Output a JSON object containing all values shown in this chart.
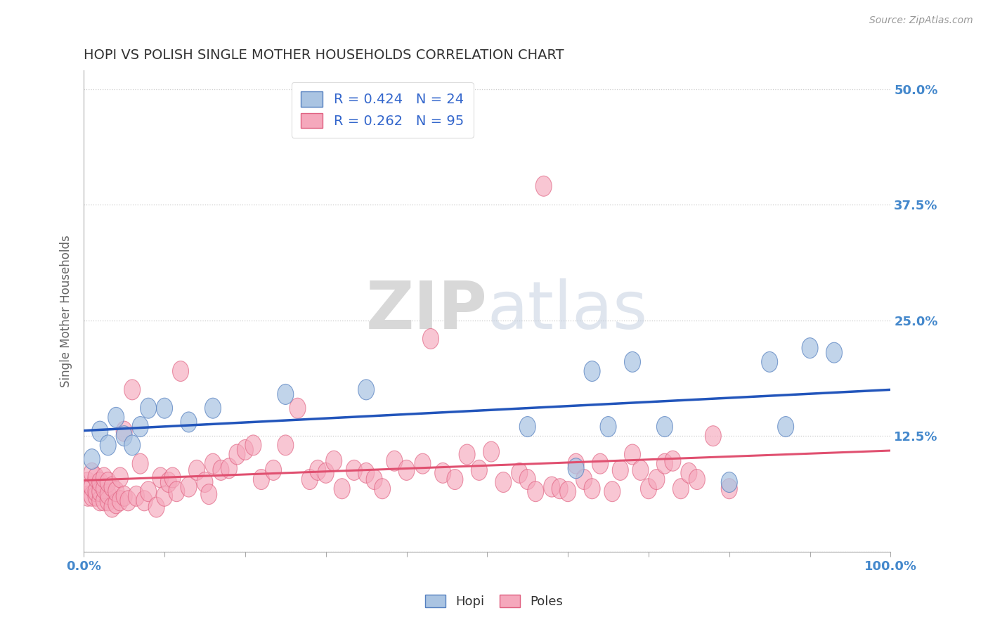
{
  "title": "HOPI VS POLISH SINGLE MOTHER HOUSEHOLDS CORRELATION CHART",
  "source": "Source: ZipAtlas.com",
  "ylabel": "Single Mother Households",
  "xlabel": "",
  "xlim": [
    0,
    1.0
  ],
  "ylim": [
    0,
    0.52
  ],
  "ytick_positions": [
    0.0,
    0.125,
    0.25,
    0.375,
    0.5
  ],
  "ytick_labels": [
    "",
    "12.5%",
    "25.0%",
    "37.5%",
    "50.0%"
  ],
  "hopi_R": 0.424,
  "hopi_N": 24,
  "polish_R": 0.262,
  "polish_N": 95,
  "hopi_color": "#aac4e2",
  "polish_color": "#f5a8bc",
  "hopi_edge_color": "#5580c0",
  "polish_edge_color": "#e06080",
  "hopi_line_color": "#2255bb",
  "polish_line_color": "#e05070",
  "legend_label_hopi": "Hopi",
  "legend_label_polish": "Poles",
  "background_color": "#ffffff",
  "grid_color": "#cccccc",
  "title_color": "#333333",
  "axis_label_color": "#666666",
  "tick_color": "#4488cc",
  "legend_text_color": "#3366cc",
  "hopi_x": [
    0.01,
    0.02,
    0.03,
    0.04,
    0.05,
    0.06,
    0.07,
    0.08,
    0.1,
    0.13,
    0.16,
    0.25,
    0.35,
    0.55,
    0.61,
    0.63,
    0.65,
    0.68,
    0.72,
    0.8,
    0.85,
    0.87,
    0.9,
    0.93
  ],
  "hopi_y": [
    0.1,
    0.13,
    0.115,
    0.145,
    0.125,
    0.115,
    0.135,
    0.155,
    0.155,
    0.14,
    0.155,
    0.17,
    0.175,
    0.135,
    0.09,
    0.195,
    0.135,
    0.205,
    0.135,
    0.075,
    0.205,
    0.135,
    0.22,
    0.215
  ],
  "polish_x": [
    0.005,
    0.005,
    0.01,
    0.01,
    0.01,
    0.015,
    0.015,
    0.015,
    0.02,
    0.02,
    0.02,
    0.025,
    0.025,
    0.025,
    0.03,
    0.03,
    0.03,
    0.035,
    0.035,
    0.04,
    0.04,
    0.045,
    0.045,
    0.05,
    0.05,
    0.055,
    0.06,
    0.065,
    0.07,
    0.075,
    0.08,
    0.09,
    0.095,
    0.1,
    0.105,
    0.11,
    0.115,
    0.12,
    0.13,
    0.14,
    0.15,
    0.155,
    0.16,
    0.17,
    0.18,
    0.19,
    0.2,
    0.21,
    0.22,
    0.235,
    0.25,
    0.265,
    0.28,
    0.29,
    0.3,
    0.31,
    0.32,
    0.335,
    0.35,
    0.36,
    0.37,
    0.385,
    0.4,
    0.42,
    0.43,
    0.445,
    0.46,
    0.475,
    0.49,
    0.505,
    0.52,
    0.54,
    0.55,
    0.56,
    0.57,
    0.58,
    0.59,
    0.6,
    0.61,
    0.62,
    0.63,
    0.64,
    0.655,
    0.665,
    0.68,
    0.69,
    0.7,
    0.71,
    0.72,
    0.73,
    0.74,
    0.75,
    0.76,
    0.78,
    0.8
  ],
  "polish_y": [
    0.06,
    0.075,
    0.06,
    0.07,
    0.085,
    0.06,
    0.065,
    0.08,
    0.055,
    0.065,
    0.075,
    0.055,
    0.068,
    0.08,
    0.055,
    0.062,
    0.075,
    0.048,
    0.07,
    0.052,
    0.065,
    0.08,
    0.055,
    0.06,
    0.13,
    0.055,
    0.175,
    0.06,
    0.095,
    0.055,
    0.065,
    0.048,
    0.08,
    0.06,
    0.075,
    0.08,
    0.065,
    0.195,
    0.07,
    0.088,
    0.075,
    0.062,
    0.095,
    0.088,
    0.09,
    0.105,
    0.11,
    0.115,
    0.078,
    0.088,
    0.115,
    0.155,
    0.078,
    0.088,
    0.085,
    0.098,
    0.068,
    0.088,
    0.085,
    0.078,
    0.068,
    0.098,
    0.088,
    0.095,
    0.23,
    0.085,
    0.078,
    0.105,
    0.088,
    0.108,
    0.075,
    0.085,
    0.078,
    0.065,
    0.395,
    0.07,
    0.068,
    0.065,
    0.095,
    0.078,
    0.068,
    0.095,
    0.065,
    0.088,
    0.105,
    0.088,
    0.068,
    0.078,
    0.095,
    0.098,
    0.068,
    0.085,
    0.078,
    0.125,
    0.068
  ]
}
